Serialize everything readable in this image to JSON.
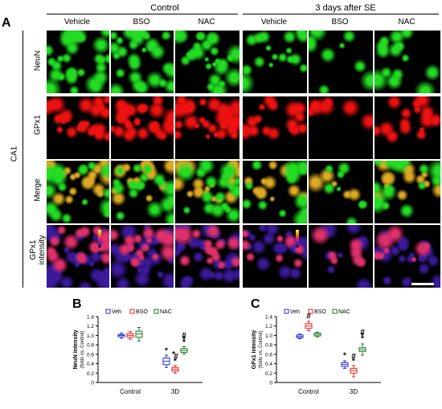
{
  "panel_a": {
    "letter": "A",
    "group_headers": [
      "Control",
      "3 days after SE"
    ],
    "columns": [
      "Vehicle",
      "BSO",
      "NAC",
      "Vehicle",
      "BSO",
      "NAC"
    ],
    "rows": [
      "NeuN",
      "GPx1",
      "Merge",
      "GPx1\nintensity"
    ],
    "region_label": "CA1",
    "channel_colors": {
      "NeuN": "#22dd22",
      "GPx1": "#ee1111",
      "Merge": "#ddaa22",
      "intensity": "#3a1a9a"
    }
  },
  "panel_b": {
    "letter": "B",
    "ylabel_line1": "NeuN intensity",
    "ylabel_line2": "(folds vs. Control)",
    "legend": [
      "Veh",
      "BSO",
      "NAC"
    ],
    "chart_data": {
      "type": "box",
      "categories": [
        "Control",
        "3D"
      ],
      "series": [
        {
          "name": "Veh",
          "color": "#2233cc",
          "median": [
            1.0,
            0.45
          ],
          "q1": [
            0.97,
            0.38
          ],
          "q3": [
            1.02,
            0.52
          ],
          "min": [
            0.94,
            0.32
          ],
          "max": [
            1.05,
            0.58
          ]
        },
        {
          "name": "BSO",
          "color": "#ee2222",
          "median": [
            1.0,
            0.28
          ],
          "q1": [
            0.96,
            0.24
          ],
          "q3": [
            1.04,
            0.32
          ],
          "min": [
            0.92,
            0.2
          ],
          "max": [
            1.08,
            0.36
          ]
        },
        {
          "name": "NAC",
          "color": "#227722",
          "median": [
            1.03,
            0.68
          ],
          "q1": [
            0.96,
            0.64
          ],
          "q3": [
            1.09,
            0.72
          ],
          "min": [
            0.88,
            0.6
          ],
          "max": [
            1.17,
            0.76
          ]
        }
      ],
      "ylim": [
        0,
        1.4
      ],
      "yticks": [
        "0",
        "0.2",
        "0.4",
        "0.6",
        "0.8",
        "1.0",
        "1.2",
        "1.4"
      ],
      "annotations": [
        "*",
        "*",
        "#",
        "*",
        "#",
        "*",
        "*"
      ]
    }
  },
  "panel_c": {
    "letter": "C",
    "ylabel_line1": "GPx1 intensity",
    "ylabel_line2": "(folds vs. Control)",
    "legend": [
      "Veh",
      "BSO",
      "NAC"
    ],
    "chart_data": {
      "type": "box",
      "categories": [
        "Control",
        "3D"
      ],
      "series": [
        {
          "name": "Veh",
          "color": "#2233cc",
          "median": [
            0.98,
            0.38
          ],
          "q1": [
            0.95,
            0.34
          ],
          "q3": [
            1.01,
            0.42
          ],
          "min": [
            0.93,
            0.3
          ],
          "max": [
            1.03,
            0.46
          ]
        },
        {
          "name": "BSO",
          "color": "#ee2222",
          "median": [
            1.2,
            0.25
          ],
          "q1": [
            1.15,
            0.2
          ],
          "q3": [
            1.25,
            0.3
          ],
          "min": [
            1.1,
            0.12
          ],
          "max": [
            1.3,
            0.36
          ]
        },
        {
          "name": "NAC",
          "color": "#227722",
          "median": [
            1.02,
            0.7
          ],
          "q1": [
            0.99,
            0.66
          ],
          "q3": [
            1.05,
            0.74
          ],
          "min": [
            0.97,
            0.58
          ],
          "max": [
            1.07,
            0.82
          ]
        }
      ],
      "ylim": [
        0,
        1.4
      ],
      "yticks": [
        "0",
        "0.2",
        "0.4",
        "0.6",
        "0.8",
        "1.0",
        "1.2",
        "1.4"
      ],
      "annotations": [
        "#",
        "*",
        "#",
        "*",
        "*",
        "#",
        "*"
      ]
    }
  }
}
